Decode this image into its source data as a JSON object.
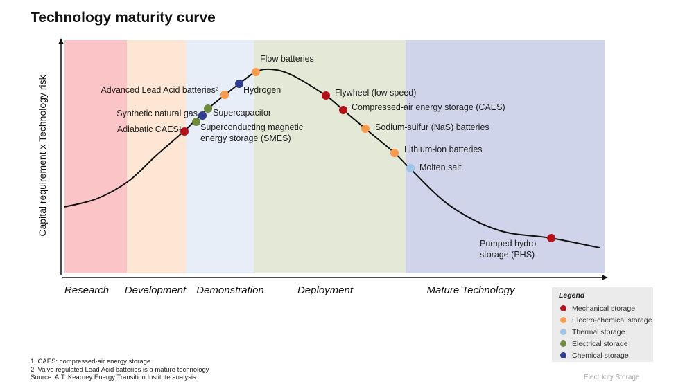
{
  "title": "Technology maturity curve",
  "y_axis_label": "Capital requirement x Technology risk",
  "stages": [
    {
      "label": "Research",
      "color": "#fbc4c6"
    },
    {
      "label": "Development",
      "color": "#fde7d4"
    },
    {
      "label": "Demonstration",
      "color": "#e8eef8"
    },
    {
      "label": "Deployment",
      "color": "#e4e8d6"
    },
    {
      "label": "Mature Technology",
      "color": "#cfd4ea"
    }
  ],
  "categories": {
    "mechanical": {
      "label": "Mechanical storage",
      "color": "#b3121c"
    },
    "electrochemical": {
      "label": "Electro-chemical storage",
      "color": "#f89b4e"
    },
    "thermal": {
      "label": "Thermal storage",
      "color": "#9ec4e6"
    },
    "electrical": {
      "label": "Electrical storage",
      "color": "#6f8a3c"
    },
    "chemical": {
      "label": "Chemical storage",
      "color": "#2d3d8c"
    }
  },
  "legend_title": "Legend",
  "technologies": [
    {
      "label": "Adiabatic CAES¹",
      "category": "mechanical"
    },
    {
      "label": "Superconducting magnetic",
      "label2": "energy storage (SMES)",
      "category": "electrical"
    },
    {
      "label": "Synthetic natural gas",
      "category": "chemical"
    },
    {
      "label": "Supercapacitor",
      "category": "electrical"
    },
    {
      "label": "Advanced Lead Acid batteries²",
      "category": "electrochemical"
    },
    {
      "label": "Hydrogen",
      "category": "chemical"
    },
    {
      "label": "Flow batteries",
      "category": "electrochemical"
    },
    {
      "label": "Flywheel (low speed)",
      "category": "mechanical"
    },
    {
      "label": "Compressed-air energy storage (CAES)",
      "category": "mechanical"
    },
    {
      "label": "Sodium-sulfur (NaS) batteries",
      "category": "electrochemical"
    },
    {
      "label": "Lithium-ion batteries",
      "category": "electrochemical"
    },
    {
      "label": "Molten salt",
      "category": "thermal"
    },
    {
      "label": "Pumped hydro",
      "label2": "storage (PHS)",
      "category": "mechanical"
    }
  ],
  "notes": [
    "1.  CAES: compressed-air energy storage",
    "2.  Valve regulated Lead Acid batteries is a mature technology",
    "Source: A.T. Kearney Energy Transition Institute analysis"
  ],
  "footer": "Electricity Storage"
}
